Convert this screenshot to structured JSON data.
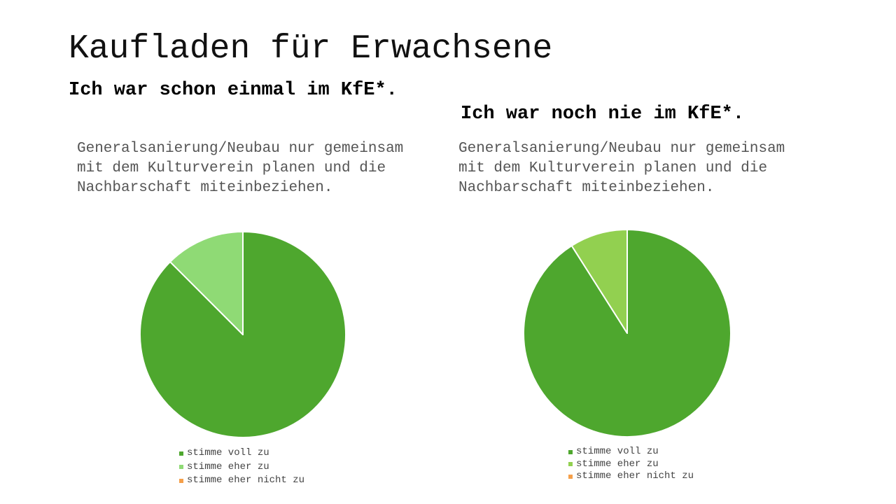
{
  "slide": {
    "title": "Kaufladen für Erwachsene"
  },
  "groups": [
    {
      "heading": "Ich war schon einmal im KfE*.",
      "statement": "Generalsanierung/Neubau nur gemeinsam mit dem Kulturverein planen und die Nachbarschaft miteinbeziehen."
    },
    {
      "heading": "Ich war noch nie im KfE*.",
      "statement": "Generalsanierung/Neubau nur gemeinsam mit dem Kulturverein planen und die Nachbarschaft miteinbeziehen."
    }
  ],
  "chart_data": [
    {
      "type": "pie",
      "categories": [
        "stimme voll zu",
        "stimme eher zu",
        "stimme eher nicht zu"
      ],
      "values": [
        87.5,
        12.5,
        0
      ],
      "colors": [
        "#4ea72e",
        "#8fda75",
        "#f5a04a"
      ],
      "legend_position": "bottom"
    },
    {
      "type": "pie",
      "categories": [
        "stimme voll zu",
        "stimme eher zu",
        "stimme eher nicht zu"
      ],
      "values": [
        91,
        9,
        0
      ],
      "colors": [
        "#4ea72e",
        "#92d050",
        "#f5a04a"
      ],
      "legend_position": "bottom"
    }
  ]
}
